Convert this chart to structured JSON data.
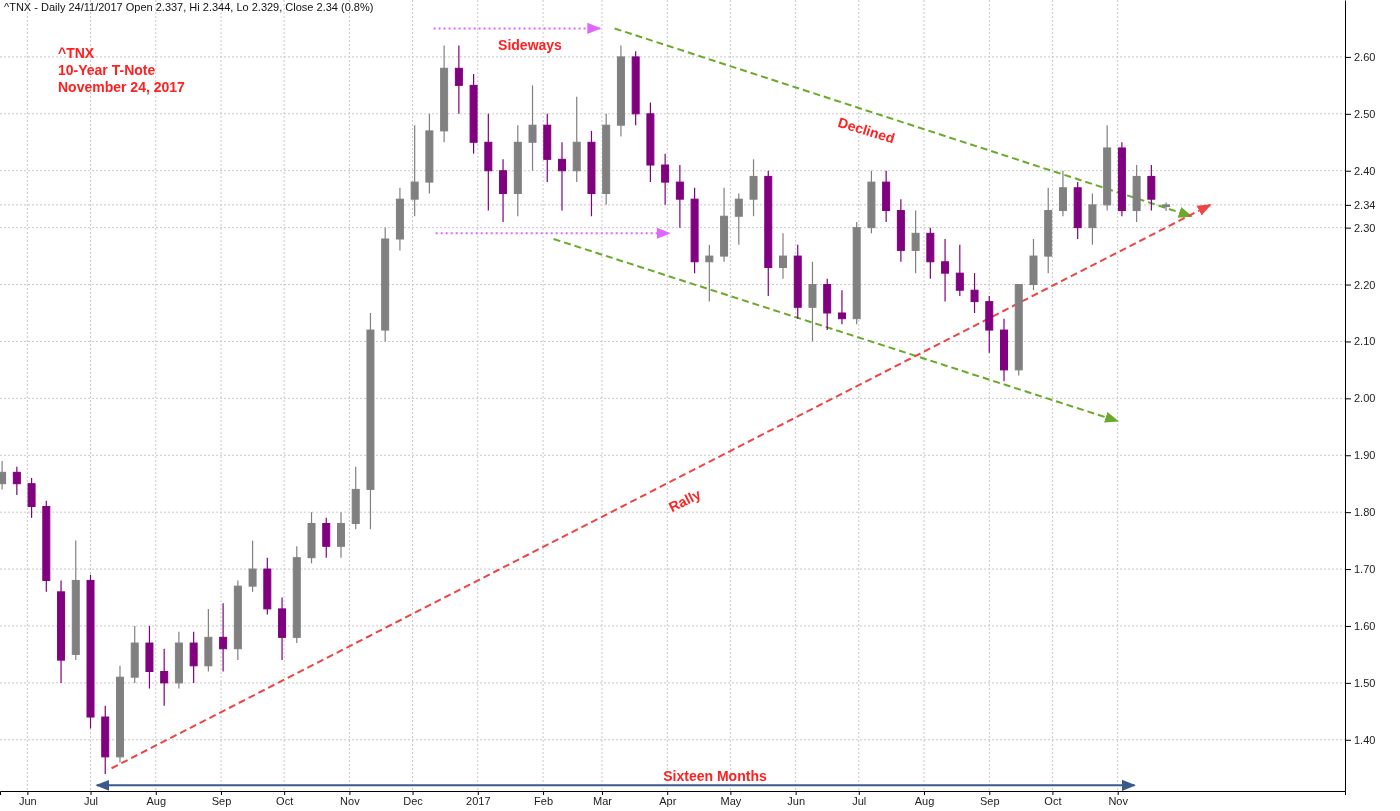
{
  "chart_data": {
    "type": "candlestick",
    "title": "^TNX - Daily 24/11/2017 Open 2.337, Hi 2.344, Lo 2.329, Close 2.34 (0.8%)",
    "x": [
      "2016-05-20",
      "2016-05-27",
      "2016-06-03",
      "2016-06-10",
      "2016-06-17",
      "2016-06-24",
      "2016-07-01",
      "2016-07-08",
      "2016-07-15",
      "2016-07-22",
      "2016-07-29",
      "2016-08-05",
      "2016-08-12",
      "2016-08-19",
      "2016-08-26",
      "2016-09-02",
      "2016-09-09",
      "2016-09-16",
      "2016-09-23",
      "2016-09-30",
      "2016-10-07",
      "2016-10-14",
      "2016-10-21",
      "2016-10-28",
      "2016-11-04",
      "2016-11-11",
      "2016-11-18",
      "2016-11-25",
      "2016-12-02",
      "2016-12-09",
      "2016-12-16",
      "2016-12-23",
      "2016-12-30",
      "2017-01-06",
      "2017-01-13",
      "2017-01-20",
      "2017-01-27",
      "2017-02-03",
      "2017-02-10",
      "2017-02-17",
      "2017-02-24",
      "2017-03-03",
      "2017-03-10",
      "2017-03-17",
      "2017-03-24",
      "2017-03-31",
      "2017-04-07",
      "2017-04-14",
      "2017-04-21",
      "2017-04-28",
      "2017-05-05",
      "2017-05-12",
      "2017-05-19",
      "2017-05-26",
      "2017-06-02",
      "2017-06-09",
      "2017-06-16",
      "2017-06-23",
      "2017-06-30",
      "2017-07-07",
      "2017-07-14",
      "2017-07-21",
      "2017-07-28",
      "2017-08-04",
      "2017-08-11",
      "2017-08-18",
      "2017-08-25",
      "2017-09-01",
      "2017-09-08",
      "2017-09-15",
      "2017-09-22",
      "2017-09-29",
      "2017-10-06",
      "2017-10-13",
      "2017-10-20",
      "2017-10-27",
      "2017-11-03",
      "2017-11-10",
      "2017-11-17",
      "2017-11-24"
    ],
    "ohlc": [
      [
        1.85,
        1.89,
        1.84,
        1.87
      ],
      [
        1.87,
        1.88,
        1.83,
        1.85
      ],
      [
        1.85,
        1.86,
        1.79,
        1.81
      ],
      [
        1.81,
        1.82,
        1.66,
        1.68
      ],
      [
        1.66,
        1.68,
        1.5,
        1.54
      ],
      [
        1.55,
        1.75,
        1.54,
        1.68
      ],
      [
        1.68,
        1.69,
        1.42,
        1.44
      ],
      [
        1.44,
        1.46,
        1.34,
        1.37
      ],
      [
        1.37,
        1.53,
        1.36,
        1.51
      ],
      [
        1.51,
        1.6,
        1.5,
        1.57
      ],
      [
        1.57,
        1.6,
        1.49,
        1.52
      ],
      [
        1.52,
        1.56,
        1.46,
        1.5
      ],
      [
        1.5,
        1.59,
        1.49,
        1.57
      ],
      [
        1.57,
        1.59,
        1.5,
        1.53
      ],
      [
        1.53,
        1.63,
        1.52,
        1.58
      ],
      [
        1.58,
        1.64,
        1.52,
        1.56
      ],
      [
        1.56,
        1.68,
        1.54,
        1.67
      ],
      [
        1.67,
        1.75,
        1.66,
        1.7
      ],
      [
        1.7,
        1.72,
        1.62,
        1.63
      ],
      [
        1.63,
        1.65,
        1.54,
        1.58
      ],
      [
        1.58,
        1.74,
        1.57,
        1.72
      ],
      [
        1.72,
        1.8,
        1.71,
        1.78
      ],
      [
        1.78,
        1.79,
        1.72,
        1.74
      ],
      [
        1.74,
        1.8,
        1.72,
        1.78
      ],
      [
        1.78,
        1.88,
        1.77,
        1.84
      ],
      [
        1.84,
        2.15,
        1.77,
        2.12
      ],
      [
        2.12,
        2.3,
        2.1,
        2.28
      ],
      [
        2.28,
        2.37,
        2.26,
        2.35
      ],
      [
        2.35,
        2.48,
        2.32,
        2.38
      ],
      [
        2.38,
        2.5,
        2.36,
        2.47
      ],
      [
        2.47,
        2.62,
        2.45,
        2.58
      ],
      [
        2.58,
        2.62,
        2.5,
        2.55
      ],
      [
        2.55,
        2.57,
        2.43,
        2.45
      ],
      [
        2.45,
        2.5,
        2.33,
        2.4
      ],
      [
        2.4,
        2.42,
        2.31,
        2.36
      ],
      [
        2.36,
        2.48,
        2.32,
        2.45
      ],
      [
        2.45,
        2.55,
        2.4,
        2.48
      ],
      [
        2.48,
        2.5,
        2.38,
        2.42
      ],
      [
        2.42,
        2.45,
        2.33,
        2.4
      ],
      [
        2.4,
        2.53,
        2.38,
        2.45
      ],
      [
        2.45,
        2.47,
        2.32,
        2.36
      ],
      [
        2.36,
        2.5,
        2.34,
        2.48
      ],
      [
        2.48,
        2.62,
        2.46,
        2.6
      ],
      [
        2.6,
        2.61,
        2.48,
        2.5
      ],
      [
        2.5,
        2.52,
        2.38,
        2.41
      ],
      [
        2.41,
        2.43,
        2.34,
        2.38
      ],
      [
        2.38,
        2.41,
        2.3,
        2.35
      ],
      [
        2.35,
        2.37,
        2.22,
        2.24
      ],
      [
        2.24,
        2.27,
        2.17,
        2.25
      ],
      [
        2.25,
        2.37,
        2.24,
        2.32
      ],
      [
        2.32,
        2.36,
        2.27,
        2.35
      ],
      [
        2.35,
        2.42,
        2.32,
        2.39
      ],
      [
        2.39,
        2.4,
        2.18,
        2.23
      ],
      [
        2.23,
        2.29,
        2.21,
        2.25
      ],
      [
        2.25,
        2.27,
        2.14,
        2.16
      ],
      [
        2.16,
        2.24,
        2.1,
        2.2
      ],
      [
        2.2,
        2.21,
        2.12,
        2.15
      ],
      [
        2.15,
        2.19,
        2.13,
        2.14
      ],
      [
        2.14,
        2.31,
        2.13,
        2.3
      ],
      [
        2.3,
        2.4,
        2.29,
        2.38
      ],
      [
        2.38,
        2.4,
        2.31,
        2.33
      ],
      [
        2.33,
        2.35,
        2.24,
        2.26
      ],
      [
        2.26,
        2.33,
        2.22,
        2.29
      ],
      [
        2.29,
        2.3,
        2.21,
        2.24
      ],
      [
        2.24,
        2.28,
        2.17,
        2.22
      ],
      [
        2.22,
        2.27,
        2.18,
        2.19
      ],
      [
        2.19,
        2.22,
        2.15,
        2.17
      ],
      [
        2.17,
        2.18,
        2.08,
        2.12
      ],
      [
        2.12,
        2.14,
        2.03,
        2.05
      ],
      [
        2.05,
        2.2,
        2.04,
        2.2
      ],
      [
        2.2,
        2.28,
        2.19,
        2.25
      ],
      [
        2.25,
        2.37,
        2.22,
        2.33
      ],
      [
        2.33,
        2.4,
        2.32,
        2.37
      ],
      [
        2.37,
        2.38,
        2.28,
        2.3
      ],
      [
        2.3,
        2.36,
        2.27,
        2.34
      ],
      [
        2.34,
        2.48,
        2.33,
        2.44
      ],
      [
        2.44,
        2.45,
        2.32,
        2.33
      ],
      [
        2.33,
        2.41,
        2.31,
        2.39
      ],
      [
        2.39,
        2.41,
        2.33,
        2.35
      ],
      [
        2.337,
        2.344,
        2.329,
        2.34
      ]
    ],
    "colors": [
      "#808080",
      "#800080",
      "#800080",
      "#800080",
      "#800080",
      "#808080",
      "#800080",
      "#800080",
      "#808080",
      "#808080",
      "#800080",
      "#800080",
      "#808080",
      "#800080",
      "#808080",
      "#800080",
      "#808080",
      "#808080",
      "#800080",
      "#800080",
      "#808080",
      "#808080",
      "#800080",
      "#808080",
      "#808080",
      "#808080",
      "#808080",
      "#808080",
      "#808080",
      "#808080",
      "#808080",
      "#800080",
      "#800080",
      "#800080",
      "#800080",
      "#808080",
      "#808080",
      "#800080",
      "#800080",
      "#808080",
      "#800080",
      "#808080",
      "#808080",
      "#800080",
      "#800080",
      "#800080",
      "#800080",
      "#800080",
      "#808080",
      "#808080",
      "#808080",
      "#808080",
      "#800080",
      "#808080",
      "#800080",
      "#808080",
      "#800080",
      "#800080",
      "#808080",
      "#808080",
      "#800080",
      "#800080",
      "#808080",
      "#800080",
      "#800080",
      "#800080",
      "#800080",
      "#800080",
      "#800080",
      "#808080",
      "#808080",
      "#808080",
      "#808080",
      "#800080",
      "#808080",
      "#808080",
      "#800080",
      "#808080",
      "#800080",
      "#808080"
    ],
    "series": [
      {
        "type": "line",
        "color": "#6aaa2a",
        "line_style": "dashed",
        "x": [
          "2017-03-07",
          "2017-12-06"
        ],
        "values": [
          2.65,
          2.32
        ]
      },
      {
        "type": "line",
        "color": "#6aaa2a",
        "line_style": "dashed",
        "x": [
          "2017-02-06",
          "2017-11-01"
        ],
        "values": [
          2.28,
          1.96
        ]
      },
      {
        "type": "line",
        "color": "#ee4444",
        "line_style": "dashed",
        "x": [
          "2016-07-11",
          "2017-12-15"
        ],
        "values": [
          1.35,
          2.34
        ]
      },
      {
        "type": "line",
        "color": "#e066ff",
        "line_style": "dotted",
        "x": [
          "2016-12-11",
          "2017-02-28"
        ],
        "values": [
          2.65,
          2.65
        ]
      },
      {
        "type": "line",
        "color": "#e066ff",
        "line_style": "dotted",
        "x": [
          "2016-12-12",
          "2017-04-02"
        ],
        "values": [
          2.29,
          2.29
        ]
      },
      {
        "type": "line",
        "color": "#3a5a8c",
        "line_style": "solid",
        "x": [
          "2016-07-04",
          "2017-11-09"
        ],
        "values": [
          1.32,
          1.32
        ]
      }
    ],
    "annotations": [
      "^TNX",
      "10-Year T-Note",
      "November 24, 2017",
      "Sideways",
      "Declined",
      "Rally",
      "Sixteen Months"
    ],
    "xlim": [
      "2016-05-19",
      "2018-02-17"
    ],
    "xticks": [
      {
        "value": "2016-06-01",
        "label": "Jun"
      },
      {
        "value": "2016-07-01",
        "label": "Jul"
      },
      {
        "value": "2016-08-01",
        "label": "Aug"
      },
      {
        "value": "2016-09-01",
        "label": "Sep"
      },
      {
        "value": "2016-10-01",
        "label": "Oct"
      },
      {
        "value": "2016-11-01",
        "label": "Nov"
      },
      {
        "value": "2016-12-01",
        "label": "Dec"
      },
      {
        "value": "2017-01-01",
        "label": "2017"
      },
      {
        "value": "2017-02-01",
        "label": "Feb"
      },
      {
        "value": "2017-03-01",
        "label": "Mar"
      },
      {
        "value": "2017-04-01",
        "label": "Apr"
      },
      {
        "value": "2017-05-01",
        "label": "May"
      },
      {
        "value": "2017-06-01",
        "label": "Jun"
      },
      {
        "value": "2017-07-01",
        "label": "Jul"
      },
      {
        "value": "2017-08-01",
        "label": "Aug"
      },
      {
        "value": "2017-09-01",
        "label": "Sep"
      },
      {
        "value": "2017-10-01",
        "label": "Oct"
      },
      {
        "value": "2017-11-01",
        "label": "Nov"
      }
    ],
    "ylim": [
      1.31,
      2.7
    ],
    "yticks": [
      {
        "value": 1.4,
        "label": "1.40"
      },
      {
        "value": 1.5,
        "label": "1.50"
      },
      {
        "value": 1.6,
        "label": "1.60"
      },
      {
        "value": 1.7,
        "label": "1.70"
      },
      {
        "value": 1.8,
        "label": "1.80"
      },
      {
        "value": 1.9,
        "label": "1.90"
      },
      {
        "value": 2.0,
        "label": "2.00"
      },
      {
        "value": 2.1,
        "label": "2.10"
      },
      {
        "value": 2.2,
        "label": "2.20"
      },
      {
        "value": 2.3,
        "label": "2.30"
      },
      {
        "value": 2.34,
        "label": "2.34"
      },
      {
        "value": 2.4,
        "label": "2.40"
      },
      {
        "value": 2.5,
        "label": "2.50"
      },
      {
        "value": 2.6,
        "label": "2.60"
      }
    ],
    "grid": true
  }
}
